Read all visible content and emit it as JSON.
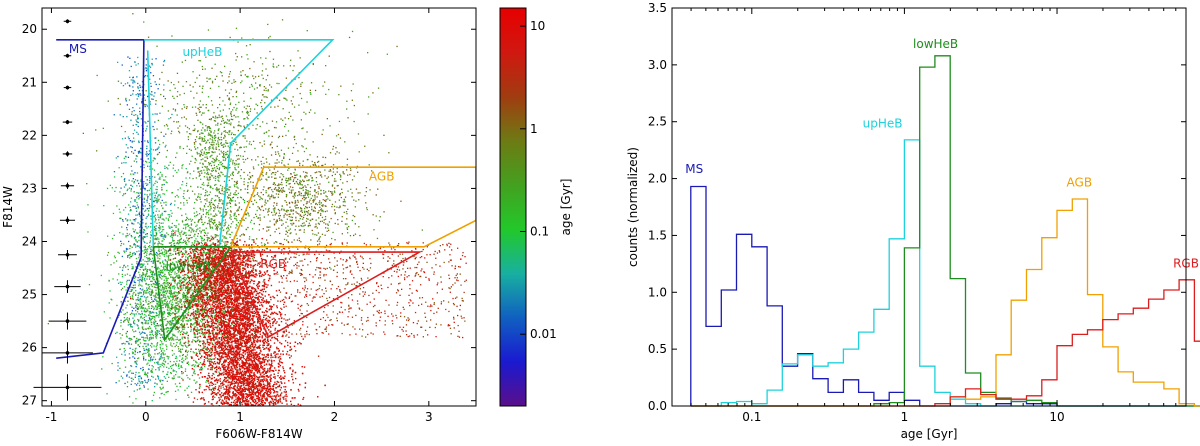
{
  "chart_data": [
    {
      "type": "scatter",
      "title": "",
      "xlabel": "F606W-F814W",
      "ylabel": "F814W",
      "xlim": [
        -1.1,
        3.5
      ],
      "ylim": [
        27.1,
        19.6
      ],
      "y_inverted": true,
      "xticks": [
        -1,
        0,
        1,
        2,
        3
      ],
      "yticks": [
        20,
        21,
        22,
        23,
        24,
        25,
        26,
        27
      ],
      "grid": false,
      "colorbar": {
        "label": "age [Gyr]",
        "scale": "log",
        "range": [
          0.002,
          15
        ],
        "ticks": [
          0.01,
          0.1,
          1,
          10
        ],
        "tick_labels": [
          "0.01",
          "0.1",
          "1",
          "10"
        ],
        "colormap": [
          "#5a0f8a",
          "#1a1ad0",
          "#1060c0",
          "#18b0a0",
          "#22c82a",
          "#44a020",
          "#6e7a14",
          "#a03c10",
          "#d01810",
          "#e60000"
        ]
      },
      "error_bars": [
        {
          "y": 19.85,
          "xerr": 0.04,
          "yerr": 0.02
        },
        {
          "y": 20.5,
          "xerr": 0.04,
          "yerr": 0.03
        },
        {
          "y": 21.1,
          "xerr": 0.04,
          "yerr": 0.03
        },
        {
          "y": 21.75,
          "xerr": 0.05,
          "yerr": 0.04
        },
        {
          "y": 22.35,
          "xerr": 0.05,
          "yerr": 0.05
        },
        {
          "y": 22.95,
          "xerr": 0.07,
          "yerr": 0.06
        },
        {
          "y": 23.6,
          "xerr": 0.08,
          "yerr": 0.07
        },
        {
          "y": 24.25,
          "xerr": 0.1,
          "yerr": 0.09
        },
        {
          "y": 24.85,
          "xerr": 0.14,
          "yerr": 0.12
        },
        {
          "y": 25.5,
          "xerr": 0.2,
          "yerr": 0.16
        },
        {
          "y": 26.1,
          "xerr": 0.27,
          "yerr": 0.2
        },
        {
          "y": 26.75,
          "xerr": 0.36,
          "yerr": 0.25
        }
      ],
      "error_bar_x": -0.83,
      "regions": [
        {
          "name": "MS",
          "color": "#1a1ab4",
          "label_pos": [
            -0.72,
            20.45
          ],
          "polygon": [
            [
              -0.95,
              20.2
            ],
            [
              -0.02,
              20.2
            ],
            [
              -0.05,
              24.3
            ],
            [
              -0.15,
              24.75
            ],
            [
              -0.45,
              26.1
            ],
            [
              -0.95,
              26.2
            ]
          ]
        },
        {
          "name": "upHeB",
          "color": "#1ed2dc",
          "label_pos": [
            0.6,
            20.5
          ],
          "polygon": [
            [
              -0.02,
              20.2
            ],
            [
              1.98,
              20.2
            ],
            [
              0.9,
              22.15
            ],
            [
              0.78,
              24.1
            ],
            [
              0.08,
              24.1
            ],
            [
              0.02,
              20.4
            ]
          ]
        },
        {
          "name": "lowHeB",
          "color": "#1e8c1e",
          "label_pos": [
            0.45,
            24.55
          ],
          "polygon": [
            [
              0.08,
              24.1
            ],
            [
              0.78,
              24.1
            ],
            [
              0.9,
              24.1
            ],
            [
              0.2,
              25.85
            ],
            [
              0.08,
              24.1
            ]
          ]
        },
        {
          "name": "AGB",
          "color": "#f0a000",
          "label_pos": [
            2.5,
            22.85
          ],
          "polygon": [
            [
              0.9,
              24.1
            ],
            [
              1.25,
              22.6
            ],
            [
              3.5,
              22.6
            ],
            [
              3.5,
              23.6
            ],
            [
              2.95,
              24.1
            ],
            [
              0.9,
              24.1
            ]
          ]
        },
        {
          "name": "RGB",
          "color": "#dc1e1e",
          "label_pos": [
            1.35,
            24.5
          ],
          "polygon": [
            [
              0.9,
              24.2
            ],
            [
              2.9,
              24.2
            ],
            [
              1.3,
              25.8
            ],
            [
              0.9,
              24.2
            ]
          ]
        }
      ]
    },
    {
      "type": "step_histogram",
      "title": "",
      "xlabel": "age [Gyr]",
      "ylabel": "counts (normalized)",
      "xscale": "log",
      "xlim": [
        0.03,
        70
      ],
      "ylim": [
        0,
        3.5
      ],
      "xticks": [
        0.1,
        1,
        10
      ],
      "xtick_labels": [
        "0.1",
        "1",
        "10"
      ],
      "yticks": [
        0,
        0.5,
        1,
        1.5,
        2,
        2.5,
        3,
        3.5
      ],
      "ytick_labels": [
        "0.0",
        "0.5",
        "1.0",
        "1.5",
        "2.0",
        "2.5",
        "3.0",
        "3.5"
      ],
      "grid": false,
      "bin_edges_log10": [
        -1.4,
        -1.3,
        -1.2,
        -1.1,
        -1.0,
        -0.9,
        -0.8,
        -0.7,
        -0.6,
        -0.5,
        -0.4,
        -0.3,
        -0.2,
        -0.1,
        0.0,
        0.1,
        0.2,
        0.3,
        0.4,
        0.5,
        0.6,
        0.7,
        0.8,
        0.9,
        1.0,
        1.1,
        1.2,
        1.3,
        1.4,
        1.5,
        1.6,
        1.7,
        1.8,
        1.9,
        2.0
      ],
      "series": [
        {
          "name": "MS",
          "color": "#1a1ab4",
          "label_pos": [
            0.042,
            2.05
          ],
          "values": [
            1.93,
            0.7,
            1.02,
            1.51,
            1.4,
            0.88,
            0.35,
            0.46,
            0.24,
            0.12,
            0.23,
            0.12,
            0.05,
            0.12,
            0.05,
            0,
            0,
            0,
            0,
            0,
            0.02,
            0.04,
            0.02,
            0.02,
            0,
            0,
            0,
            0,
            0,
            0,
            0,
            0,
            0,
            0
          ]
        },
        {
          "name": "upHeB",
          "color": "#1ed2dc",
          "label_pos": [
            0.72,
            2.45
          ],
          "values": [
            0,
            0,
            0.03,
            0.04,
            0.02,
            0.14,
            0.37,
            0.45,
            0.35,
            0.38,
            0.5,
            0.65,
            0.85,
            1.47,
            2.34,
            0.35,
            0.12,
            0.06,
            0.02,
            0,
            0,
            0,
            0,
            0,
            0,
            0,
            0,
            0,
            0,
            0,
            0,
            0,
            0,
            0
          ]
        },
        {
          "name": "lowHeB",
          "color": "#1e8c1e",
          "label_pos": [
            1.6,
            3.15
          ],
          "values": [
            0,
            0,
            0,
            0,
            0,
            0,
            0,
            0,
            0,
            0,
            0,
            0,
            0.02,
            0.03,
            1.39,
            2.98,
            3.08,
            1.12,
            0.29,
            0.12,
            0.07,
            0.04,
            0.05,
            0.03,
            0,
            0,
            0,
            0,
            0,
            0,
            0,
            0,
            0,
            0
          ]
        },
        {
          "name": "AGB",
          "color": "#f0a000",
          "label_pos": [
            14.0,
            1.93
          ],
          "values": [
            0,
            0,
            0,
            0,
            0,
            0,
            0,
            0,
            0,
            0,
            0,
            0,
            0,
            0,
            0,
            0,
            0,
            0.08,
            0.06,
            0.08,
            0.45,
            0.93,
            1.2,
            1.48,
            1.72,
            1.82,
            0.98,
            0.52,
            0.3,
            0.21,
            0.21,
            0.15,
            0.02,
            0
          ]
        },
        {
          "name": "RGB",
          "color": "#dc1e1e",
          "label_pos": [
            70.0,
            1.22
          ],
          "values": [
            0,
            0,
            0,
            0,
            0,
            0,
            0,
            0,
            0,
            0,
            0,
            0,
            0,
            0,
            0,
            0,
            0.02,
            0.08,
            0.15,
            0.1,
            0.06,
            0.06,
            0.09,
            0.23,
            0.53,
            0.63,
            0.67,
            0.76,
            0.81,
            0.86,
            0.94,
            1.02,
            1.11,
            0.57
          ]
        }
      ]
    }
  ]
}
